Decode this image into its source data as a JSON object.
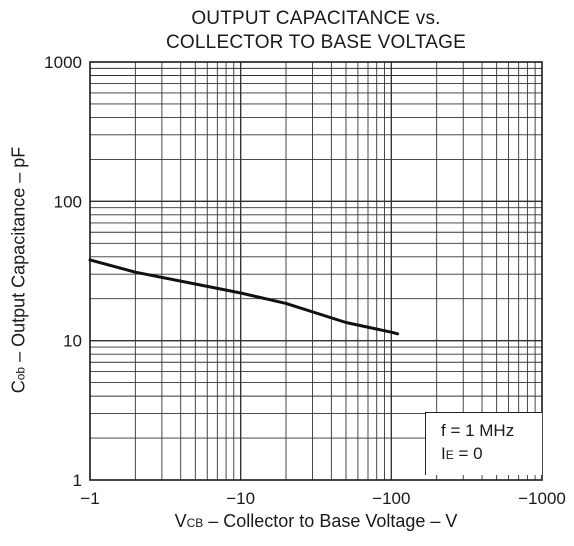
{
  "title_line1": "OUTPUT CAPACITANCE vs.",
  "title_line2": "COLLECTOR TO BASE VOLTAGE",
  "xlabel": {
    "symbol": "V",
    "sub": "CB",
    "text": " – Collector to Base Voltage – V"
  },
  "ylabel": {
    "symbol": "C",
    "sub": "ob",
    "text": " – Output Capacitance – pF"
  },
  "legend": {
    "line1": "f = 1 MHz",
    "line2_symbol": "I",
    "line2_sub": "E",
    "line2_text": " = 0"
  },
  "chart_data": {
    "type": "line",
    "xscale": "log",
    "yscale": "log",
    "x_axis_direction": "negative voltage, magnitude increasing to the right",
    "xlim": [
      -1,
      -1000
    ],
    "ylim": [
      1,
      1000
    ],
    "x_ticks": [
      -1,
      -10,
      -100,
      -1000
    ],
    "x_tick_labels": [
      "−1",
      "−10",
      "−100",
      "−1000"
    ],
    "y_ticks": [
      1,
      10,
      100,
      1000
    ],
    "y_tick_labels": [
      "1",
      "10",
      "100",
      "1000"
    ],
    "grid": true,
    "legend_position": "bottom-right",
    "series": [
      {
        "color": "#111111",
        "x": [
          -1,
          -2,
          -5,
          -10,
          -20,
          -50,
          -100,
          -110
        ],
        "y": [
          38,
          31,
          25.5,
          22,
          18.5,
          13.5,
          11.5,
          11.2
        ]
      }
    ]
  }
}
